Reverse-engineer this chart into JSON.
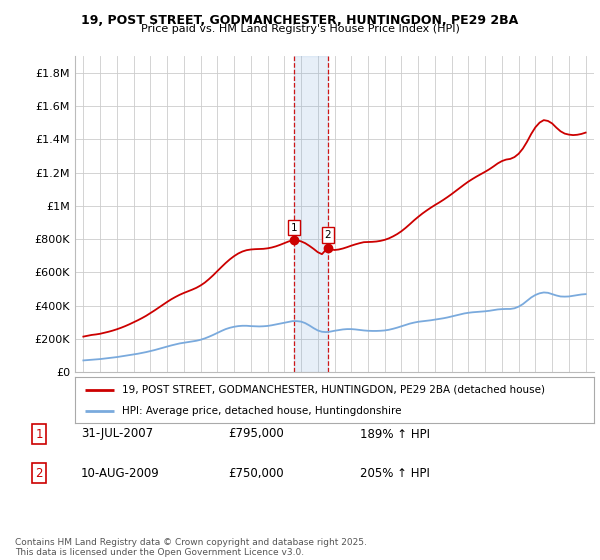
{
  "title1": "19, POST STREET, GODMANCHESTER, HUNTINGDON, PE29 2BA",
  "title2": "Price paid vs. HM Land Registry's House Price Index (HPI)",
  "legend_label1": "19, POST STREET, GODMANCHESTER, HUNTINGDON, PE29 2BA (detached house)",
  "legend_label2": "HPI: Average price, detached house, Huntingdonshire",
  "footnote": "Contains HM Land Registry data © Crown copyright and database right 2025.\nThis data is licensed under the Open Government Licence v3.0.",
  "transaction1_date": "31-JUL-2007",
  "transaction1_price": "£795,000",
  "transaction1_hpi": "189% ↑ HPI",
  "transaction2_date": "10-AUG-2009",
  "transaction2_price": "£750,000",
  "transaction2_hpi": "205% ↑ HPI",
  "transaction1_year": 2007.58,
  "transaction2_year": 2009.61,
  "transaction1_price_val": 795000,
  "transaction2_price_val": 750000,
  "red_color": "#cc0000",
  "blue_color": "#7aaadd",
  "background_color": "#ffffff",
  "grid_color": "#cccccc",
  "ytick_labels": [
    "£0",
    "£200K",
    "£400K",
    "£600K",
    "£800K",
    "£1M",
    "£1.2M",
    "£1.4M",
    "£1.6M",
    "£1.8M"
  ],
  "ytick_values": [
    0,
    200000,
    400000,
    600000,
    800000,
    1000000,
    1200000,
    1400000,
    1600000,
    1800000
  ],
  "ylim": [
    0,
    1900000
  ],
  "xlim_start": 1994.5,
  "xlim_end": 2025.5,
  "hpi_x": [
    1995.0,
    1995.25,
    1995.5,
    1995.75,
    1996.0,
    1996.25,
    1996.5,
    1996.75,
    1997.0,
    1997.25,
    1997.5,
    1997.75,
    1998.0,
    1998.25,
    1998.5,
    1998.75,
    1999.0,
    1999.25,
    1999.5,
    1999.75,
    2000.0,
    2000.25,
    2000.5,
    2000.75,
    2001.0,
    2001.25,
    2001.5,
    2001.75,
    2002.0,
    2002.25,
    2002.5,
    2002.75,
    2003.0,
    2003.25,
    2003.5,
    2003.75,
    2004.0,
    2004.25,
    2004.5,
    2004.75,
    2005.0,
    2005.25,
    2005.5,
    2005.75,
    2006.0,
    2006.25,
    2006.5,
    2006.75,
    2007.0,
    2007.25,
    2007.5,
    2007.75,
    2008.0,
    2008.25,
    2008.5,
    2008.75,
    2009.0,
    2009.25,
    2009.5,
    2009.75,
    2010.0,
    2010.25,
    2010.5,
    2010.75,
    2011.0,
    2011.25,
    2011.5,
    2011.75,
    2012.0,
    2012.25,
    2012.5,
    2012.75,
    2013.0,
    2013.25,
    2013.5,
    2013.75,
    2014.0,
    2014.25,
    2014.5,
    2014.75,
    2015.0,
    2015.25,
    2015.5,
    2015.75,
    2016.0,
    2016.25,
    2016.5,
    2016.75,
    2017.0,
    2017.25,
    2017.5,
    2017.75,
    2018.0,
    2018.25,
    2018.5,
    2018.75,
    2019.0,
    2019.25,
    2019.5,
    2019.75,
    2020.0,
    2020.25,
    2020.5,
    2020.75,
    2021.0,
    2021.25,
    2021.5,
    2021.75,
    2022.0,
    2022.25,
    2022.5,
    2022.75,
    2023.0,
    2023.25,
    2023.5,
    2023.75,
    2024.0,
    2024.25,
    2024.5,
    2024.75,
    2025.0
  ],
  "hpi_y": [
    72000,
    74000,
    76000,
    78000,
    80000,
    83000,
    86000,
    89000,
    92000,
    96000,
    100000,
    104000,
    108000,
    112000,
    117000,
    122000,
    128000,
    134000,
    141000,
    148000,
    155000,
    162000,
    168000,
    174000,
    178000,
    182000,
    186000,
    190000,
    196000,
    204000,
    214000,
    225000,
    237000,
    249000,
    260000,
    268000,
    274000,
    278000,
    280000,
    280000,
    278000,
    277000,
    276000,
    277000,
    279000,
    283000,
    288000,
    293000,
    298000,
    303000,
    308000,
    308000,
    305000,
    296000,
    282000,
    266000,
    252000,
    244000,
    242000,
    245000,
    250000,
    254000,
    258000,
    260000,
    260000,
    258000,
    255000,
    252000,
    250000,
    249000,
    249000,
    250000,
    252000,
    256000,
    262000,
    269000,
    277000,
    285000,
    293000,
    299000,
    304000,
    307000,
    310000,
    313000,
    317000,
    321000,
    325000,
    330000,
    336000,
    342000,
    348000,
    354000,
    358000,
    361000,
    363000,
    365000,
    367000,
    370000,
    374000,
    378000,
    380000,
    381000,
    381000,
    385000,
    395000,
    410000,
    430000,
    450000,
    465000,
    475000,
    480000,
    478000,
    470000,
    462000,
    456000,
    455000,
    456000,
    460000,
    464000,
    468000,
    470000
  ],
  "price_x": [
    1995.0,
    1995.25,
    1995.5,
    1995.75,
    1996.0,
    1996.25,
    1996.5,
    1996.75,
    1997.0,
    1997.25,
    1997.5,
    1997.75,
    1998.0,
    1998.25,
    1998.5,
    1998.75,
    1999.0,
    1999.25,
    1999.5,
    1999.75,
    2000.0,
    2000.25,
    2000.5,
    2000.75,
    2001.0,
    2001.25,
    2001.5,
    2001.75,
    2002.0,
    2002.25,
    2002.5,
    2002.75,
    2003.0,
    2003.25,
    2003.5,
    2003.75,
    2004.0,
    2004.25,
    2004.5,
    2004.75,
    2005.0,
    2005.25,
    2005.5,
    2005.75,
    2006.0,
    2006.25,
    2006.5,
    2006.75,
    2007.0,
    2007.25,
    2007.58,
    2007.75,
    2008.0,
    2008.25,
    2008.5,
    2008.75,
    2009.0,
    2009.25,
    2009.61,
    2009.75,
    2010.0,
    2010.25,
    2010.5,
    2010.75,
    2011.0,
    2011.25,
    2011.5,
    2011.75,
    2012.0,
    2012.25,
    2012.5,
    2012.75,
    2013.0,
    2013.25,
    2013.5,
    2013.75,
    2014.0,
    2014.25,
    2014.5,
    2014.75,
    2015.0,
    2015.25,
    2015.5,
    2015.75,
    2016.0,
    2016.25,
    2016.5,
    2016.75,
    2017.0,
    2017.25,
    2017.5,
    2017.75,
    2018.0,
    2018.25,
    2018.5,
    2018.75,
    2019.0,
    2019.25,
    2019.5,
    2019.75,
    2020.0,
    2020.25,
    2020.5,
    2020.75,
    2021.0,
    2021.25,
    2021.5,
    2021.75,
    2022.0,
    2022.25,
    2022.5,
    2022.75,
    2023.0,
    2023.25,
    2023.5,
    2023.75,
    2024.0,
    2024.25,
    2024.5,
    2024.75,
    2025.0
  ],
  "price_y": [
    215000,
    220000,
    225000,
    228000,
    232000,
    238000,
    244000,
    251000,
    259000,
    268000,
    278000,
    289000,
    301000,
    313000,
    326000,
    340000,
    356000,
    372000,
    389000,
    406000,
    423000,
    439000,
    453000,
    466000,
    477000,
    487000,
    497000,
    508000,
    522000,
    539000,
    560000,
    583000,
    608000,
    633000,
    657000,
    679000,
    698000,
    714000,
    726000,
    734000,
    738000,
    740000,
    741000,
    742000,
    745000,
    750000,
    757000,
    766000,
    776000,
    786000,
    795000,
    793000,
    787000,
    776000,
    760000,
    742000,
    722000,
    710000,
    750000,
    740000,
    735000,
    738000,
    744000,
    752000,
    761000,
    769000,
    776000,
    782000,
    783000,
    784000,
    786000,
    790000,
    796000,
    805000,
    817000,
    831000,
    848000,
    868000,
    890000,
    913000,
    934000,
    954000,
    972000,
    989000,
    1005000,
    1020000,
    1036000,
    1053000,
    1071000,
    1090000,
    1109000,
    1128000,
    1146000,
    1162000,
    1177000,
    1191000,
    1205000,
    1220000,
    1237000,
    1255000,
    1269000,
    1278000,
    1282000,
    1293000,
    1313000,
    1344000,
    1385000,
    1432000,
    1472000,
    1500000,
    1515000,
    1510000,
    1495000,
    1470000,
    1448000,
    1434000,
    1428000,
    1425000,
    1427000,
    1432000,
    1440000
  ]
}
